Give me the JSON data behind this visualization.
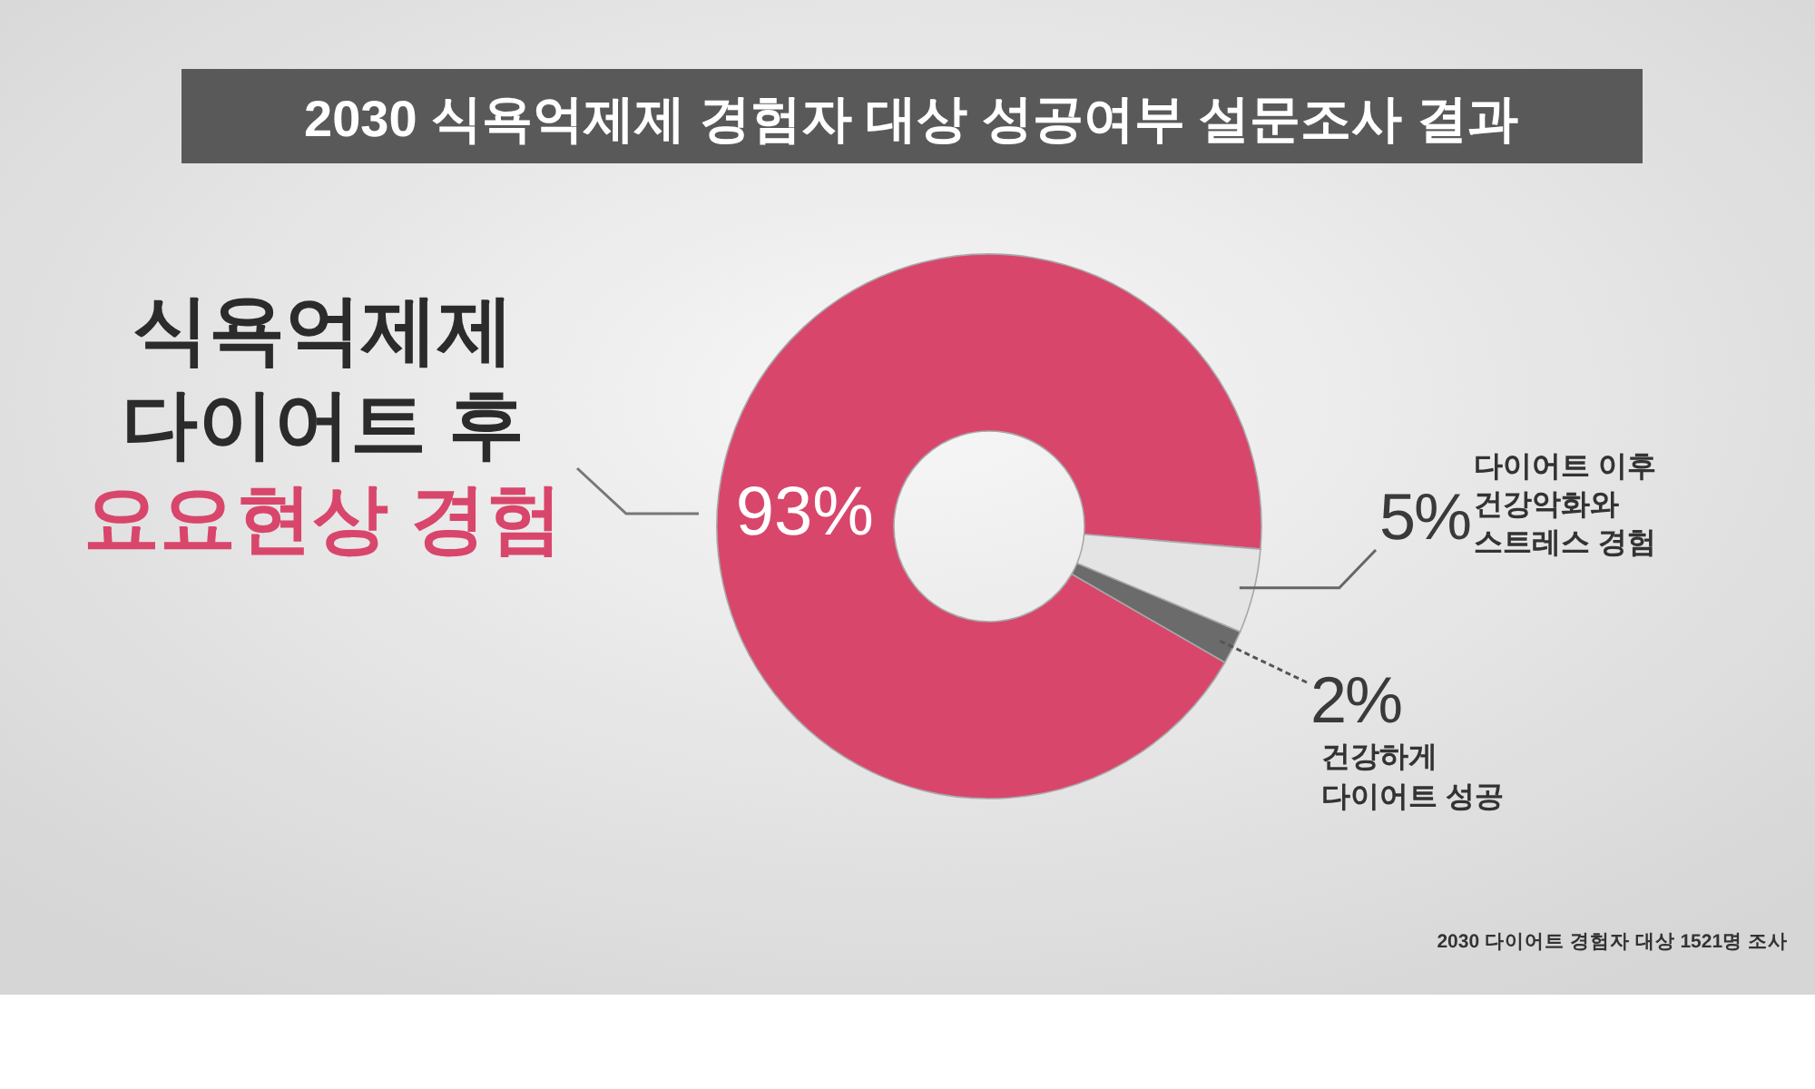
{
  "chart_data": {
    "type": "donut",
    "title": "2030 식욕억제제 경험자 대상 성공여부 설문조사 결과",
    "categories": [
      "식욕억제제\n다이어트 후\n요요현상 경험",
      "다이어트 이후\n건강악화와\n스트레스 경험",
      "건강하게\n다이어트 성공"
    ],
    "values": [
      93,
      5,
      2
    ],
    "colors": [
      "#d9466b",
      "#e4e4e4",
      "#6b6b6b"
    ],
    "value_labels": [
      "93%",
      "5%",
      "2%"
    ],
    "annotations": [
      "2030 다이어트 경험자 대상 1521명 조사"
    ]
  }
}
